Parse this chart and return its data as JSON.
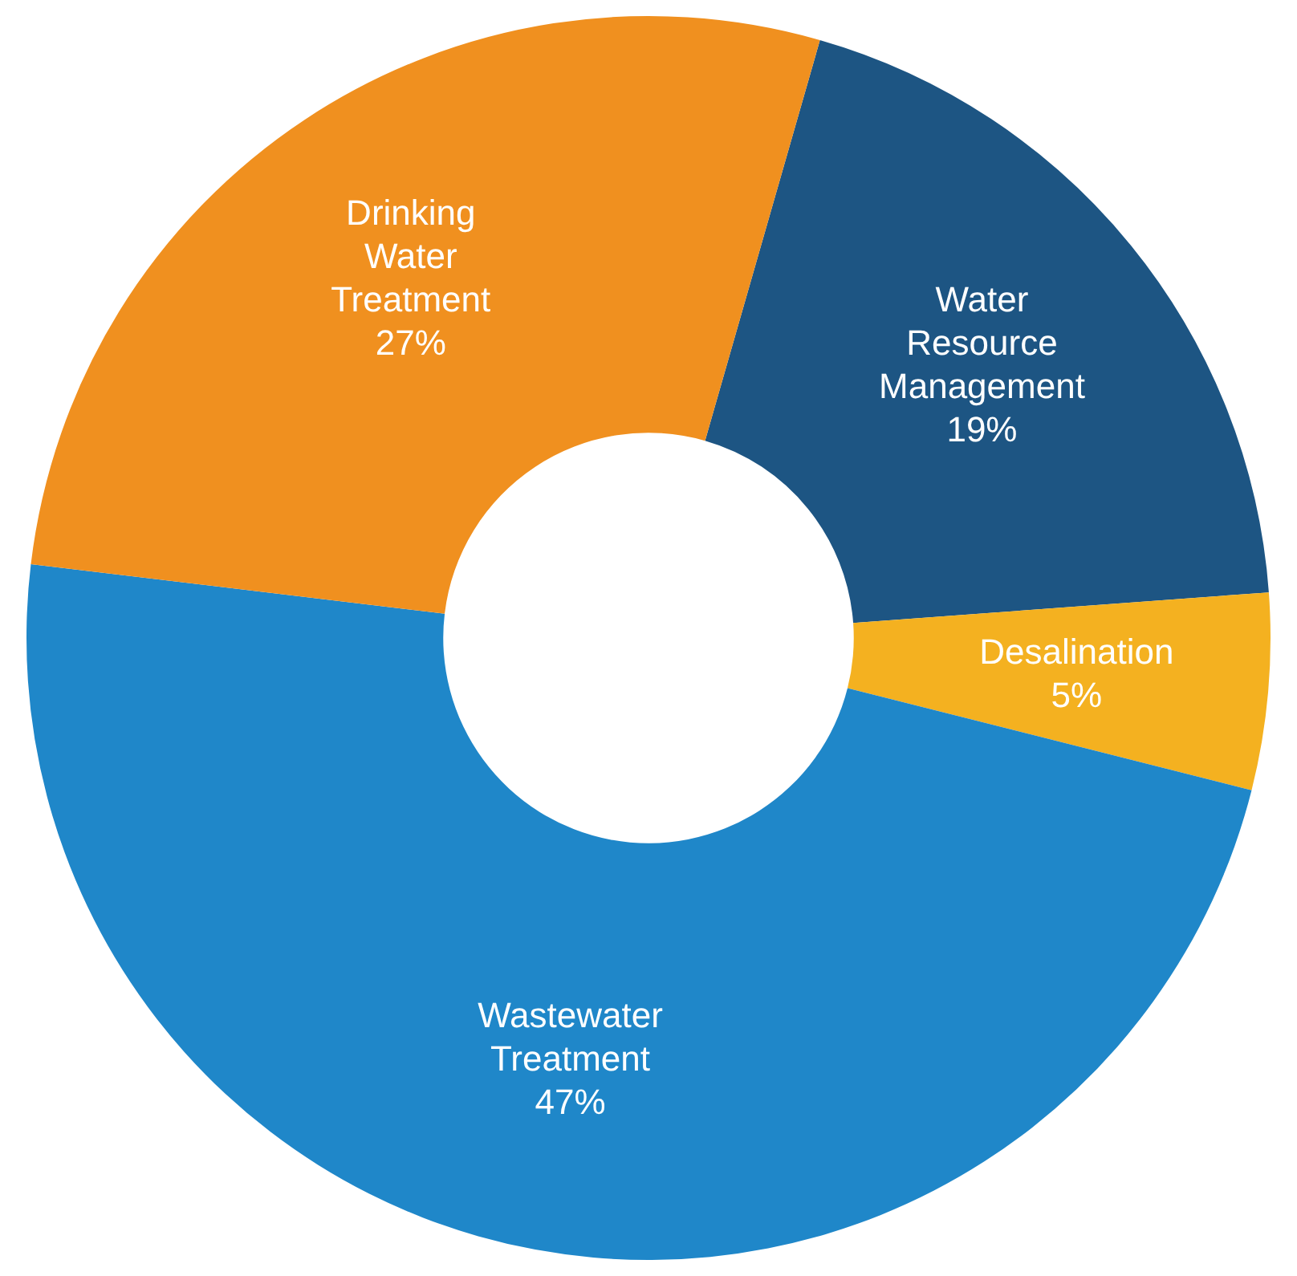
{
  "chart_data": {
    "type": "donut",
    "categories": [
      "Water Resource Management",
      "Desalination",
      "Wastewater Treatment",
      "Drinking Water Treatment"
    ],
    "values": [
      19,
      5,
      47,
      27
    ],
    "value_labels": [
      "19%",
      "5%",
      "47%",
      "27%"
    ],
    "colors": [
      "#1d5583",
      "#f4b120",
      "#1f87c9",
      "#f0901f"
    ],
    "legend": false
  }
}
